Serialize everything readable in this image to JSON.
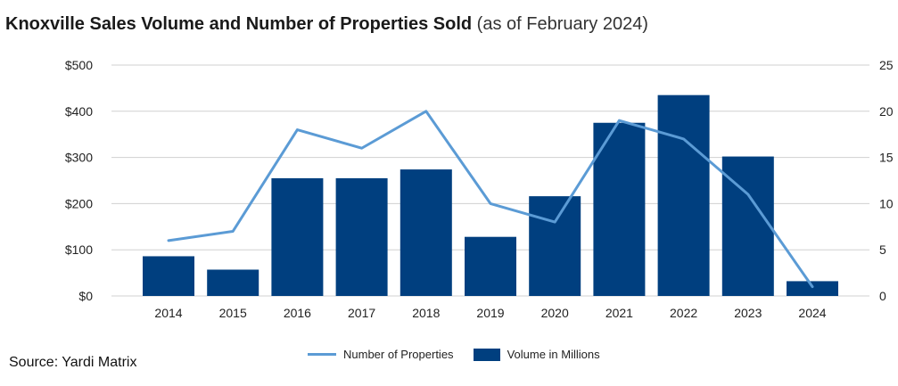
{
  "title": {
    "main": "Knoxville Sales Volume and Number of Properties Sold",
    "sub": "(as of February 2024)"
  },
  "source": "Source: Yardi Matrix",
  "colors": {
    "bar": "#003f7f",
    "line": "#5b9bd5",
    "grid": "#d0d0d0"
  },
  "chart_data": {
    "type": "bar",
    "categories": [
      "2014",
      "2015",
      "2016",
      "2017",
      "2018",
      "2019",
      "2020",
      "2021",
      "2022",
      "2023",
      "2024"
    ],
    "series": [
      {
        "name": "Volume in Millions",
        "type": "bar",
        "axis": "left",
        "values": [
          86,
          57,
          255,
          255,
          274,
          128,
          216,
          375,
          435,
          302,
          32
        ]
      },
      {
        "name": "Number of Properties",
        "type": "line",
        "axis": "right",
        "values": [
          6,
          7,
          18,
          16,
          20,
          10,
          8,
          19,
          17,
          11,
          1
        ]
      }
    ],
    "y_left": {
      "ylim": [
        0,
        500
      ],
      "ticks": [
        "$0",
        "$100",
        "$200",
        "$300",
        "$400",
        "$500"
      ]
    },
    "y_right": {
      "ylim": [
        0,
        25
      ],
      "ticks": [
        "0",
        "5",
        "10",
        "15",
        "20",
        "25"
      ]
    },
    "grid": true,
    "legend": {
      "placement": "bottom",
      "entries": [
        "Number of Properties",
        "Volume in Millions"
      ]
    }
  }
}
